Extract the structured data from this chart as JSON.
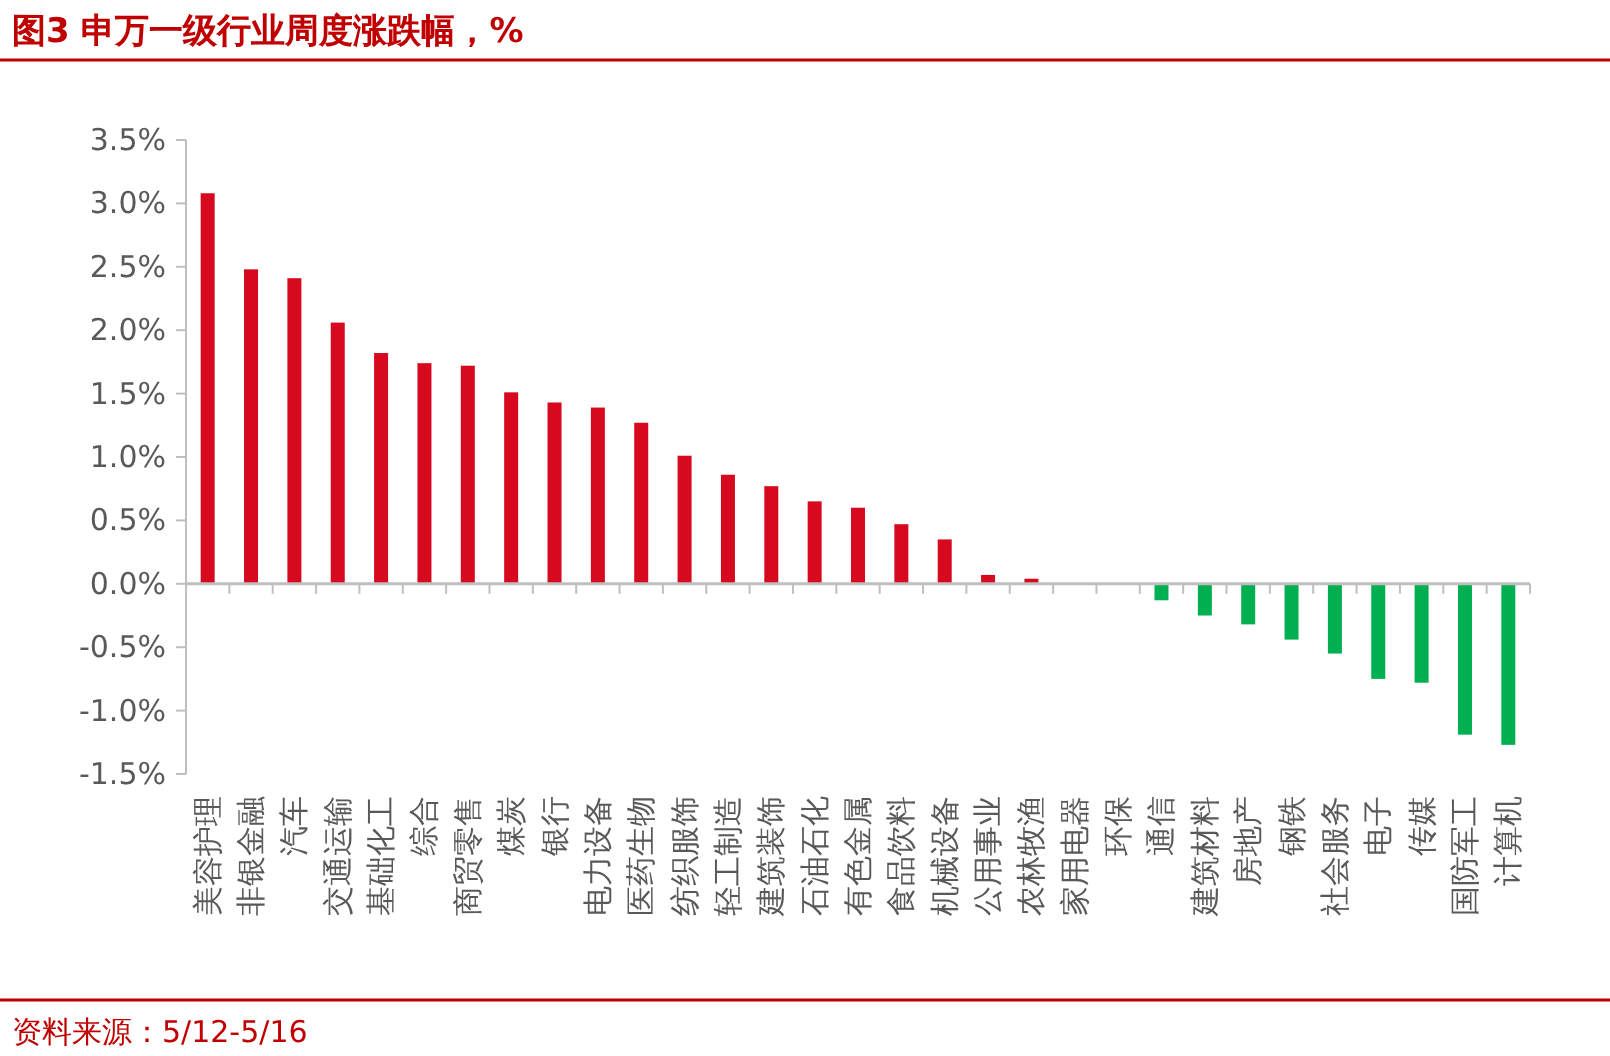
{
  "chart_data": {
    "type": "bar",
    "title": "图3  申万一级行业周度涨跌幅，%",
    "annotations": [
      "资料来源：5/12-5/16"
    ],
    "categories": [
      "美容护理",
      "非银金融",
      "汽车",
      "交通运输",
      "基础化工",
      "综合",
      "商贸零售",
      "煤炭",
      "银行",
      "电力设备",
      "医药生物",
      "纺织服饰",
      "轻工制造",
      "建筑装饰",
      "石油石化",
      "有色金属",
      "食品饮料",
      "机械设备",
      "公用事业",
      "农林牧渔",
      "家用电器",
      "环保",
      "通信",
      "建筑材料",
      "房地产",
      "钢铁",
      "社会服务",
      "电子",
      "传媒",
      "国防军工",
      "计算机"
    ],
    "values": [
      3.08,
      2.48,
      2.41,
      2.06,
      1.82,
      1.74,
      1.72,
      1.51,
      1.43,
      1.39,
      1.27,
      1.01,
      0.86,
      0.77,
      0.65,
      0.6,
      0.47,
      0.35,
      0.07,
      0.04,
      0,
      0,
      -0.13,
      -0.25,
      -0.32,
      -0.44,
      -0.55,
      -0.75,
      -0.78,
      -1.19,
      -1.27
    ],
    "colors": [
      "#d7091f",
      "#d7091f",
      "#d7091f",
      "#d7091f",
      "#d7091f",
      "#d7091f",
      "#d7091f",
      "#d7091f",
      "#d7091f",
      "#d7091f",
      "#d7091f",
      "#d7091f",
      "#d7091f",
      "#d7091f",
      "#d7091f",
      "#d7091f",
      "#d7091f",
      "#d7091f",
      "#d7091f",
      "#d7091f",
      "#d7091f",
      "#00b050",
      "#00b050",
      "#00b050",
      "#00b050",
      "#00b050",
      "#00b050",
      "#00b050",
      "#00b050",
      "#00b050",
      "#00b050"
    ],
    "ylim": [
      -1.5,
      3.5
    ],
    "yticks": [
      {
        "value": -1.5,
        "label": "-1.5%"
      },
      {
        "value": -1.0,
        "label": "-1.0%"
      },
      {
        "value": -0.5,
        "label": "-0.5%"
      },
      {
        "value": 0,
        "label": "0.0%"
      },
      {
        "value": 0.5,
        "label": "0.5%"
      },
      {
        "value": 1.0,
        "label": "1.0%"
      },
      {
        "value": 1.5,
        "label": "1.5%"
      },
      {
        "value": 2.0,
        "label": "2.0%"
      },
      {
        "value": 2.5,
        "label": "2.5%"
      },
      {
        "value": 3.0,
        "label": "3.0%"
      },
      {
        "value": 3.5,
        "label": "3.5%"
      }
    ]
  }
}
